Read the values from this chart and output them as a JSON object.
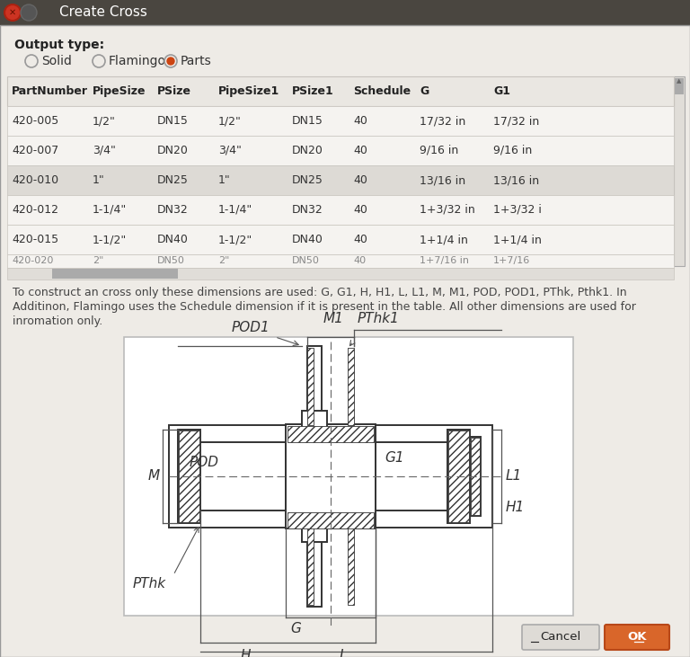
{
  "title": "Create Cross",
  "title_bar_color": "#4a4640",
  "bg_color": "#eeebe6",
  "output_type_label": "Output type:",
  "radio_options": [
    "Solid",
    "Flamingo",
    "Parts"
  ],
  "radio_selected": 2,
  "table_headers": [
    "PartNumber",
    "PipeSize",
    "PSize",
    "PipeSize1",
    "PSize1",
    "Schedule",
    "G",
    "G1"
  ],
  "table_rows": [
    [
      "420-005",
      "1/2\"",
      "DN15",
      "1/2\"",
      "DN15",
      "40",
      "17/32 in",
      "17/32 in"
    ],
    [
      "420-007",
      "3/4\"",
      "DN20",
      "3/4\"",
      "DN20",
      "40",
      "9/16 in",
      "9/16 in"
    ],
    [
      "420-010",
      "1\"",
      "DN25",
      "1\"",
      "DN25",
      "40",
      "13/16 in",
      "13/16 in"
    ],
    [
      "420-012",
      "1-1/4\"",
      "DN32",
      "1-1/4\"",
      "DN32",
      "40",
      "1+3/32 in",
      "1+3/32 i"
    ],
    [
      "420-015",
      "1-1/2\"",
      "DN40",
      "1-1/2\"",
      "DN40",
      "40",
      "1+1/4 in",
      "1+1/4 in"
    ]
  ],
  "row_alt_color": "#dddad5",
  "row_normal_color": "#f5f3f0",
  "header_color": "#eae7e2",
  "table_border_color": "#c8c4be",
  "description_text": "To construct an cross only these dimensions are used: G, G1, H, H1, L, L1, M, M1, POD, POD1, PThk, Pthk1. In\nAdditinon, Flamingo uses the Schedule dimension if it is present in the table. All other dimensions are used for\ninromation only.",
  "cancel_btn_color": "#dedbd6",
  "ok_btn_color": "#d9662a",
  "diagram_bg": "#ffffff",
  "diagram_border": "#bbbbbb",
  "line_color": "#333333",
  "label_color": "#333333"
}
